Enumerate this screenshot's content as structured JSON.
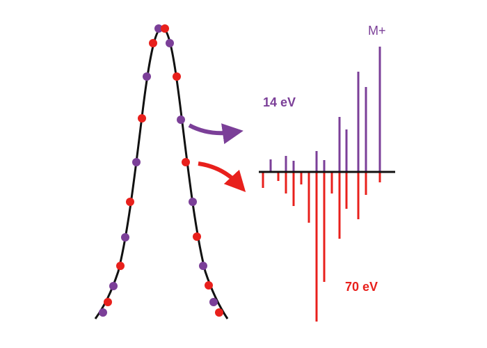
{
  "labels": {
    "low_energy": "14 eV",
    "high_energy": "70 eV",
    "molecular_ion": "M+"
  }
}
